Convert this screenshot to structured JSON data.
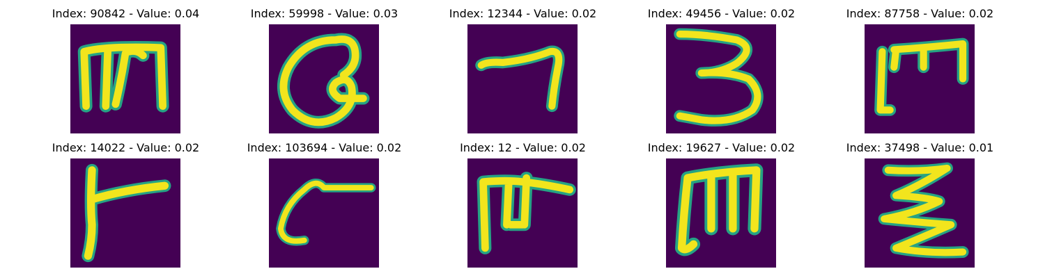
{
  "figure": {
    "panels": [
      {
        "title": "Index: 90842 - Value: 0.04",
        "glyph": "handwritten-m-icon"
      },
      {
        "title": "Index: 59998 - Value: 0.03",
        "glyph": "handwritten-q-icon"
      },
      {
        "title": "Index: 12344 - Value: 0.02",
        "glyph": "handwritten-7-icon"
      },
      {
        "title": "Index: 49456 - Value: 0.02",
        "glyph": "handwritten-3-icon"
      },
      {
        "title": "Index: 87758 - Value: 0.02",
        "glyph": "handwritten-m-icon"
      },
      {
        "title": "Index: 14022 - Value: 0.02",
        "glyph": "handwritten-r-icon"
      },
      {
        "title": "Index: 103694 - Value: 0.02",
        "glyph": "handwritten-c-icon"
      },
      {
        "title": "Index: 12 - Value: 0.02",
        "glyph": "handwritten-m-icon"
      },
      {
        "title": "Index: 19627 - Value: 0.02",
        "glyph": "handwritten-m-icon"
      },
      {
        "title": "Index: 37498 - Value: 0.01",
        "glyph": "handwritten-z-icon"
      }
    ],
    "colors": {
      "background": "#440154",
      "stroke_edge": "#26a384",
      "stroke_core": "#f2e51d"
    }
  }
}
